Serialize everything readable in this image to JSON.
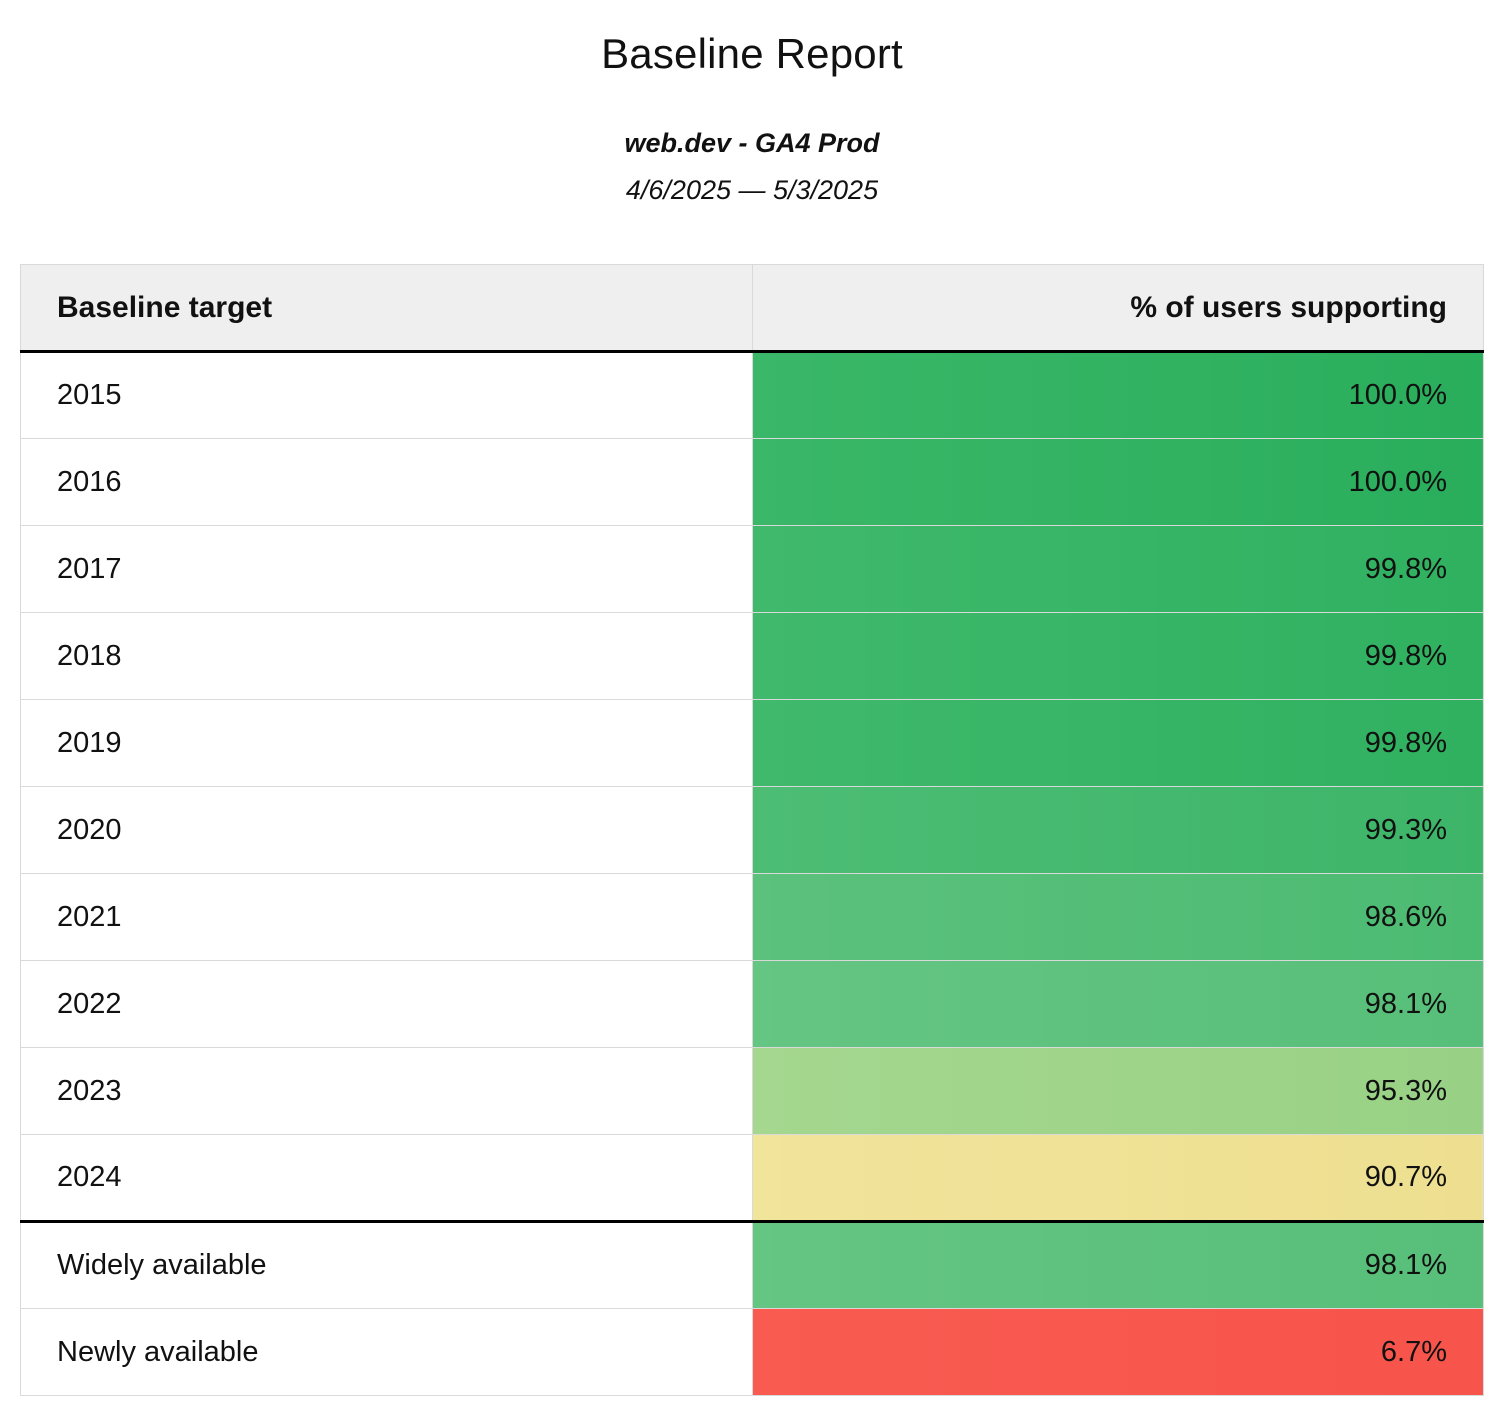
{
  "page": {
    "title": "Baseline Report",
    "subtitle": "web.dev - GA4 Prod",
    "date_range": "4/6/2025 — 5/3/2025"
  },
  "table": {
    "columns": {
      "target": "Baseline target",
      "percent": "% of users supporting"
    },
    "rows": [
      {
        "label": "2015",
        "value": "100.0%",
        "color_left": "#3ab768",
        "color_right": "#29ae5c",
        "thick_bottom": false
      },
      {
        "label": "2016",
        "value": "100.0%",
        "color_left": "#3ab768",
        "color_right": "#29ae5c",
        "thick_bottom": false
      },
      {
        "label": "2017",
        "value": "99.8%",
        "color_left": "#40b96c",
        "color_right": "#2fb160",
        "thick_bottom": false
      },
      {
        "label": "2018",
        "value": "99.8%",
        "color_left": "#40b96c",
        "color_right": "#2fb160",
        "thick_bottom": false
      },
      {
        "label": "2019",
        "value": "99.8%",
        "color_left": "#40b96c",
        "color_right": "#2fb160",
        "thick_bottom": false
      },
      {
        "label": "2020",
        "value": "99.3%",
        "color_left": "#4dbd74",
        "color_right": "#3db569",
        "thick_bottom": false
      },
      {
        "label": "2021",
        "value": "98.6%",
        "color_left": "#5bc17c",
        "color_right": "#4cbb72",
        "thick_bottom": false
      },
      {
        "label": "2022",
        "value": "98.1%",
        "color_left": "#65c583",
        "color_right": "#57bf79",
        "thick_bottom": false
      },
      {
        "label": "2023",
        "value": "95.3%",
        "color_left": "#a5d78f",
        "color_right": "#98d185",
        "thick_bottom": false
      },
      {
        "label": "2024",
        "value": "90.7%",
        "color_left": "#f1e49b",
        "color_right": "#eedf90",
        "thick_bottom": true
      },
      {
        "label": "Widely available",
        "value": "98.1%",
        "color_left": "#65c583",
        "color_right": "#57bf79",
        "thick_bottom": false
      },
      {
        "label": "Newly available",
        "value": "6.7%",
        "color_left": "#f95b51",
        "color_right": "#f7544b",
        "thick_bottom": false
      }
    ]
  },
  "chart_data": {
    "type": "table",
    "title": "Baseline Report",
    "subtitle": "web.dev - GA4 Prod",
    "date_range": "4/6/2025 — 5/3/2025",
    "columns": [
      "Baseline target",
      "% of users supporting"
    ],
    "rows": [
      [
        "2015",
        100.0
      ],
      [
        "2016",
        100.0
      ],
      [
        "2017",
        99.8
      ],
      [
        "2018",
        99.8
      ],
      [
        "2019",
        99.8
      ],
      [
        "2020",
        99.3
      ],
      [
        "2021",
        98.6
      ],
      [
        "2022",
        98.1
      ],
      [
        "2023",
        95.3
      ],
      [
        "2024",
        90.7
      ],
      [
        "Widely available",
        98.1
      ],
      [
        "Newly available",
        6.7
      ]
    ],
    "value_unit": "percent",
    "color_scale": {
      "high": "#29ae5c",
      "mid": "#eedf90",
      "low": "#f7544b"
    }
  }
}
